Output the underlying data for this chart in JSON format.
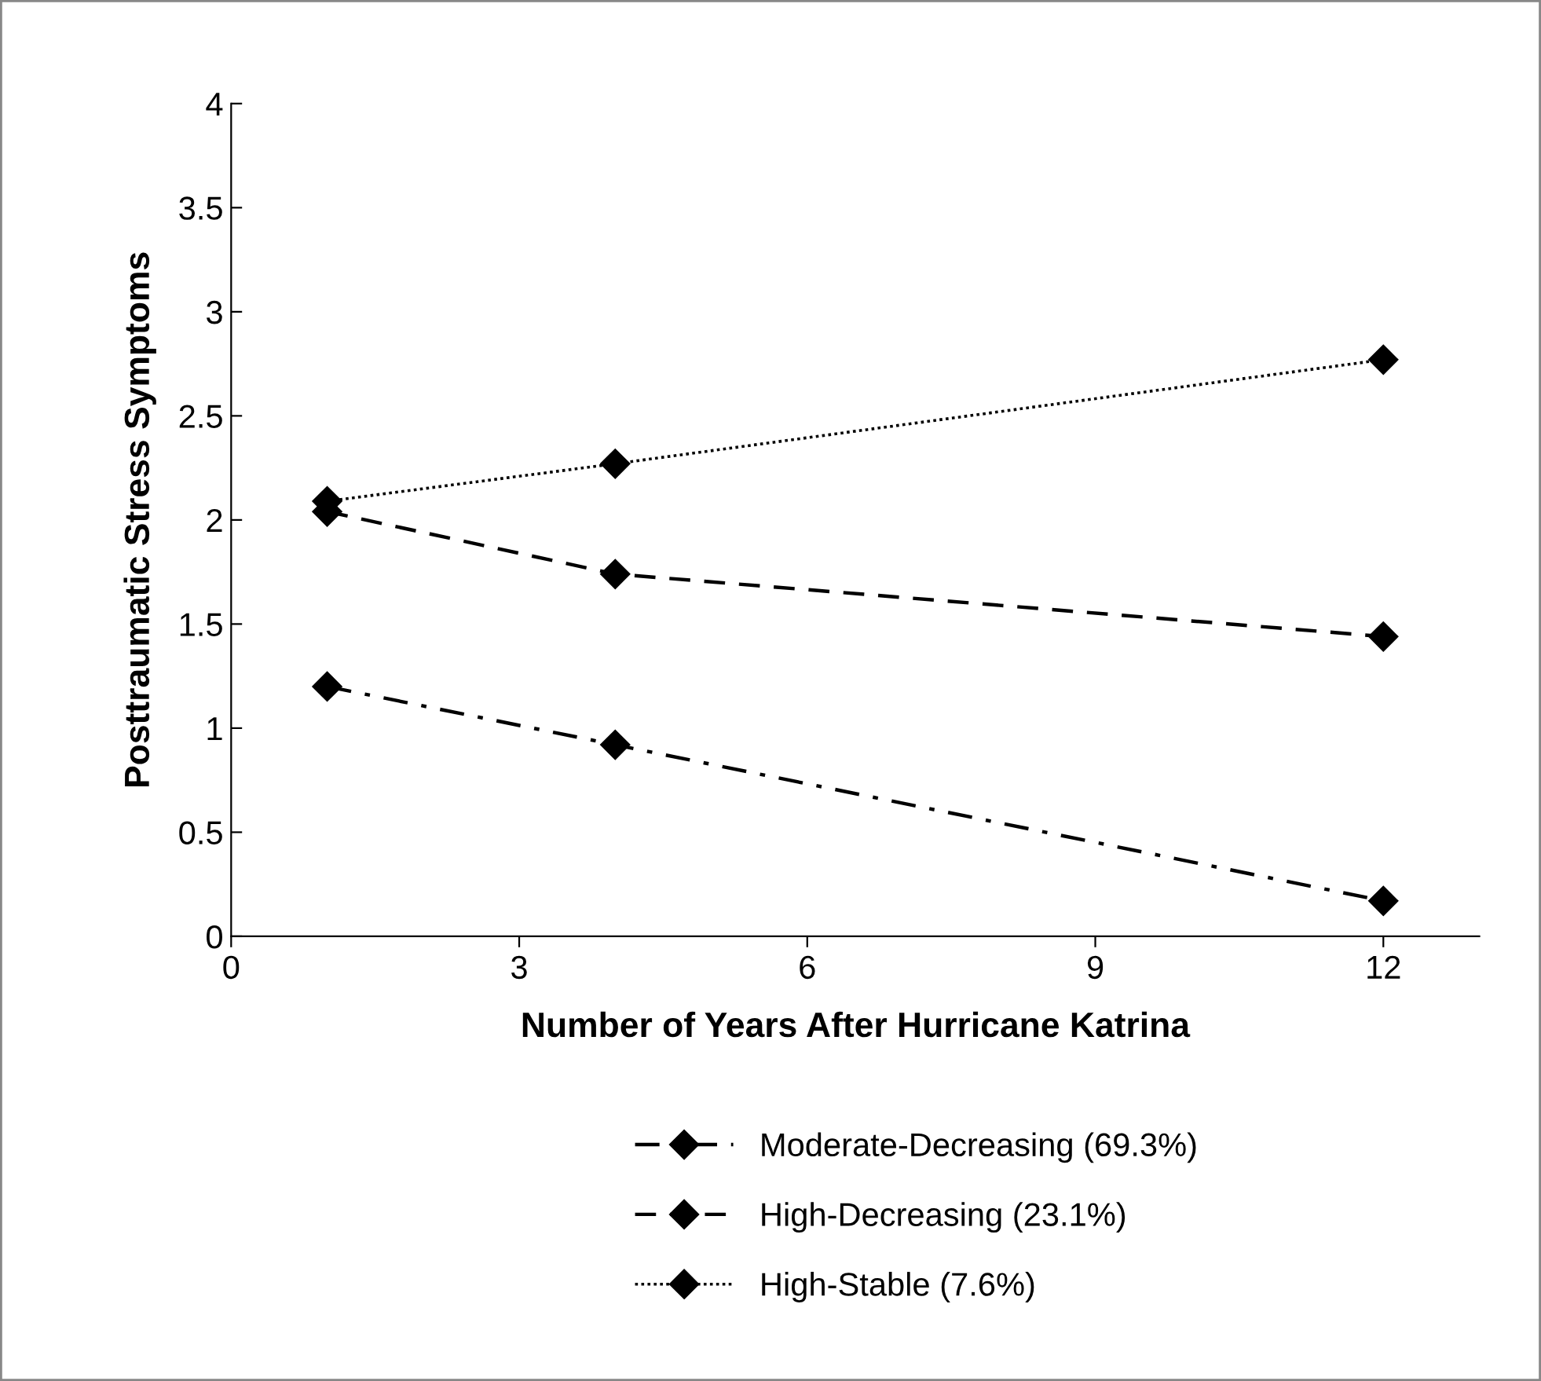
{
  "chart_data": {
    "type": "line",
    "xlabel": "Number of Years After Hurricane Katrina",
    "ylabel": "Posttraumatic Stress Symptoms",
    "x": [
      1,
      4,
      12
    ],
    "series": [
      {
        "name": "Moderate-Decreasing (69.3%)",
        "color": "#000000",
        "values": [
          1.2,
          0.92,
          0.17
        ],
        "line_style": "dashdot"
      },
      {
        "name": "High-Decreasing (23.1%)",
        "color": "#000000",
        "values": [
          2.04,
          1.74,
          1.44
        ],
        "line_style": "dashed"
      },
      {
        "name": "High-Stable (7.6%)",
        "color": "#000000",
        "values": [
          2.09,
          2.27,
          2.77
        ],
        "line_style": "dotted"
      }
    ],
    "xlim": [
      0,
      13
    ],
    "xticks": [
      0,
      3,
      6,
      9,
      12
    ],
    "ylim": [
      0,
      4
    ],
    "yticks": [
      0,
      0.5,
      1,
      1.5,
      2,
      2.5,
      3,
      3.5,
      4
    ],
    "marker": "diamond",
    "grid": false,
    "legend": "bottom"
  }
}
